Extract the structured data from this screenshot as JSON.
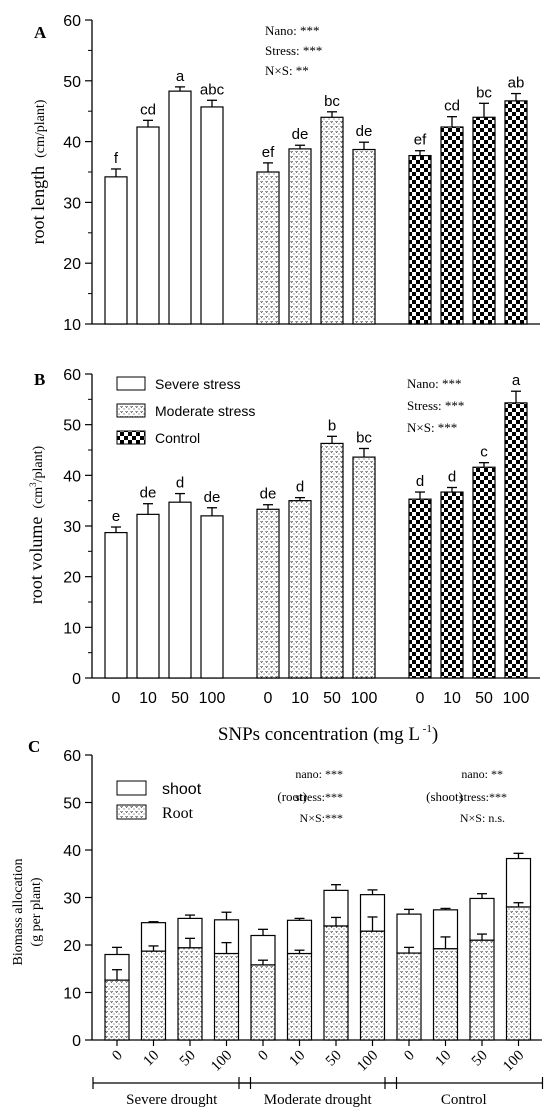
{
  "colors": {
    "ink": "#000000",
    "background": "#ffffff"
  },
  "chart_data": [
    {
      "panel": "A",
      "type": "bar",
      "ylabel_main": "root length",
      "ylabel_unit": "(cm/plant)",
      "ylim": [
        10,
        60
      ],
      "yticks": [
        "10",
        "20",
        "30",
        "40",
        "50",
        "60"
      ],
      "groups": [
        {
          "name": "Severe stress",
          "pattern": "open",
          "categories": [
            "0",
            "10",
            "50",
            "100"
          ],
          "values": [
            34.2,
            42.4,
            48.3,
            45.7
          ],
          "errors": [
            1.3,
            1.1,
            0.7,
            1.1
          ],
          "letters": [
            "f",
            "cd",
            "a",
            "abc"
          ]
        },
        {
          "name": "Moderate stress",
          "pattern": "dotted",
          "categories": [
            "0",
            "10",
            "50",
            "100"
          ],
          "values": [
            35.0,
            38.8,
            44.0,
            38.7
          ],
          "errors": [
            1.5,
            0.6,
            0.9,
            1.2
          ],
          "letters": [
            "ef",
            "de",
            "bc",
            "de"
          ]
        },
        {
          "name": "Control",
          "pattern": "checker",
          "categories": [
            "0",
            "10",
            "50",
            "100"
          ],
          "values": [
            37.7,
            42.4,
            44.0,
            46.7
          ],
          "errors": [
            0.8,
            1.7,
            2.3,
            1.2
          ],
          "letters": [
            "ef",
            "cd",
            "bc",
            "ab"
          ]
        }
      ],
      "annotations": [
        "Nano: ***",
        "Stress: ***",
        "N×S: **"
      ]
    },
    {
      "panel": "B",
      "type": "bar",
      "ylabel_main": "root volume",
      "ylabel_unit_pre": "(cm",
      "ylabel_unit_sup": "3",
      "ylabel_unit_post": "/plant)",
      "ylim": [
        0,
        60
      ],
      "yticks": [
        "0",
        "10",
        "20",
        "30",
        "40",
        "50",
        "60"
      ],
      "xticks": [
        "0",
        "10",
        "50",
        "100"
      ],
      "xlabel_pre": "SNPs concentration (mg L",
      "xlabel_sup": " -1",
      "xlabel_post": ")",
      "legend": [
        "Severe stress",
        "Moderate stress",
        "Control"
      ],
      "groups": [
        {
          "name": "Severe stress",
          "pattern": "open",
          "categories": [
            "0",
            "10",
            "50",
            "100"
          ],
          "values": [
            28.7,
            32.3,
            34.7,
            32.0
          ],
          "errors": [
            1.1,
            2.1,
            1.7,
            1.6
          ],
          "letters": [
            "e",
            "de",
            "d",
            "de"
          ]
        },
        {
          "name": "Moderate stress",
          "pattern": "dotted",
          "categories": [
            "0",
            "10",
            "50",
            "100"
          ],
          "values": [
            33.3,
            35.0,
            46.3,
            43.6
          ],
          "errors": [
            0.9,
            0.6,
            1.4,
            1.7
          ],
          "letters": [
            "de",
            "d",
            "b",
            "bc"
          ]
        },
        {
          "name": "Control",
          "pattern": "checker",
          "categories": [
            "0",
            "10",
            "50",
            "100"
          ],
          "values": [
            35.3,
            36.7,
            41.6,
            54.3
          ],
          "errors": [
            1.4,
            0.9,
            0.9,
            2.3
          ],
          "letters": [
            "d",
            "d",
            "c",
            "a"
          ]
        }
      ],
      "annotations": [
        "Nano: ***",
        "Stress: ***",
        "N×S: ***"
      ]
    },
    {
      "panel": "C",
      "type": "stacked_bar",
      "ylabel_line1": "Biomass allocation",
      "ylabel_line2": "(g per plant)",
      "ylim": [
        0,
        60
      ],
      "yticks": [
        "0",
        "10",
        "20",
        "30",
        "40",
        "50",
        "60"
      ],
      "legend": [
        "shoot",
        "Root"
      ],
      "groups": [
        {
          "name": "Severe drought",
          "categories": [
            "0",
            "10",
            "50",
            "100"
          ],
          "root": [
            12.6,
            18.7,
            19.4,
            18.2
          ],
          "root_err": [
            2.2,
            1.1,
            2.0,
            2.3
          ],
          "total": [
            18.0,
            24.7,
            25.6,
            25.3
          ],
          "total_err": [
            1.5,
            0.2,
            0.7,
            1.6
          ]
        },
        {
          "name": "Moderate drought",
          "categories": [
            "0",
            "10",
            "50",
            "100"
          ],
          "root": [
            15.8,
            18.2,
            24.0,
            22.9
          ],
          "root_err": [
            1.0,
            0.7,
            1.8,
            3.0
          ],
          "total": [
            22.0,
            25.2,
            31.5,
            30.6
          ],
          "total_err": [
            1.3,
            0.4,
            1.2,
            1.0
          ]
        },
        {
          "name": "Control",
          "categories": [
            "0",
            "10",
            "50",
            "100"
          ],
          "root": [
            18.3,
            19.2,
            21.0,
            28.0
          ],
          "root_err": [
            1.2,
            2.5,
            1.3,
            0.9
          ],
          "total": [
            26.5,
            27.4,
            29.8,
            38.2
          ],
          "total_err": [
            1.0,
            0.3,
            1.0,
            1.1
          ]
        }
      ],
      "annotations_root": {
        "label": "(root)",
        "lines": [
          "nano: ***",
          "stress:***",
          "N×S:***"
        ]
      },
      "annotations_shoot": {
        "label": "(shoot)",
        "lines": [
          "nano: **",
          "stress:***",
          "N×S: n.s."
        ]
      }
    }
  ]
}
